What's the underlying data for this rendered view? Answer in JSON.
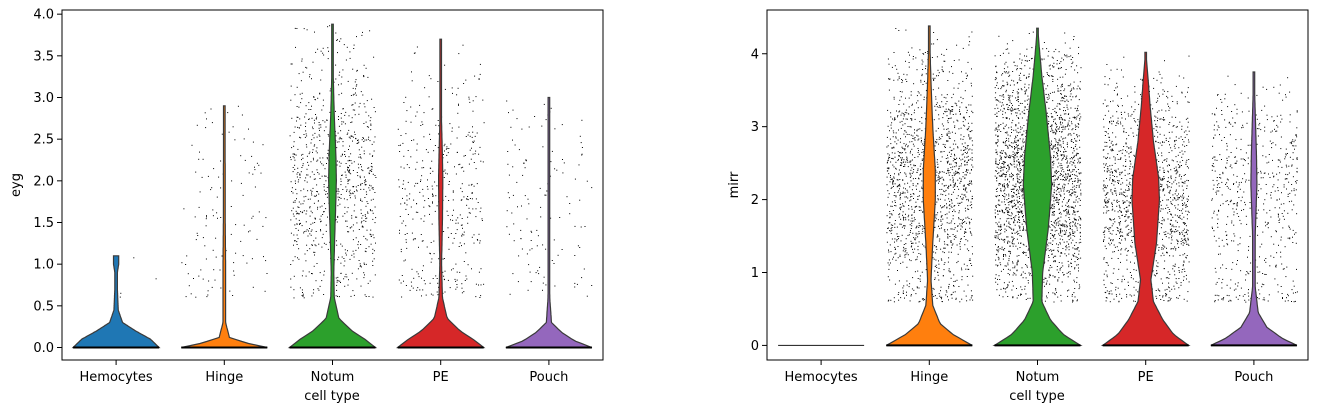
{
  "chart_data": [
    {
      "type": "violin",
      "ylabel": "eyg",
      "xlabel": "cell type",
      "ylim": [
        -0.15,
        4.05
      ],
      "yticks": [
        "0.0",
        "0.5",
        "1.0",
        "1.5",
        "2.0",
        "2.5",
        "3.0",
        "3.5",
        "4.0"
      ],
      "ytick_values": [
        0,
        0.5,
        1.0,
        1.5,
        2.0,
        2.5,
        3.0,
        3.5,
        4.0
      ],
      "grid": false,
      "categories": [
        "Hemocytes",
        "Hinge",
        "Notum",
        "PE",
        "Pouch"
      ],
      "series": [
        {
          "category": "Hemocytes",
          "color": "#1f77b4",
          "max": 1.1,
          "density": [
            [
              0,
              1.0
            ],
            [
              0.1,
              0.8
            ],
            [
              0.2,
              0.45
            ],
            [
              0.3,
              0.15
            ],
            [
              0.45,
              0.05
            ],
            [
              0.7,
              0.03
            ],
            [
              0.9,
              0.03
            ],
            [
              1.0,
              0.06
            ],
            [
              1.1,
              0.06
            ]
          ],
          "points": 4
        },
        {
          "category": "Hinge",
          "color": "#ff7f0e",
          "max": 2.9,
          "density": [
            [
              0,
              1.0
            ],
            [
              0.05,
              0.55
            ],
            [
              0.12,
              0.12
            ],
            [
              0.3,
              0.03
            ],
            [
              1.0,
              0.03
            ],
            [
              1.6,
              0.02
            ],
            [
              2.2,
              0.02
            ],
            [
              2.9,
              0.01
            ]
          ],
          "points": 120
        },
        {
          "category": "Notum",
          "color": "#2ca02c",
          "max": 3.88,
          "density": [
            [
              0,
              1.0
            ],
            [
              0.1,
              0.75
            ],
            [
              0.2,
              0.45
            ],
            [
              0.35,
              0.15
            ],
            [
              0.6,
              0.04
            ],
            [
              0.9,
              0.03
            ],
            [
              1.3,
              0.05
            ],
            [
              1.8,
              0.08
            ],
            [
              2.0,
              0.09
            ],
            [
              2.3,
              0.08
            ],
            [
              2.8,
              0.04
            ],
            [
              3.2,
              0.02
            ],
            [
              3.88,
              0.01
            ]
          ],
          "points": 900
        },
        {
          "category": "PE",
          "color": "#d62728",
          "max": 3.7,
          "density": [
            [
              0,
              1.0
            ],
            [
              0.1,
              0.75
            ],
            [
              0.2,
              0.45
            ],
            [
              0.35,
              0.15
            ],
            [
              0.6,
              0.04
            ],
            [
              1.0,
              0.02
            ],
            [
              1.5,
              0.04
            ],
            [
              2.0,
              0.05
            ],
            [
              2.3,
              0.04
            ],
            [
              2.7,
              0.02
            ],
            [
              3.2,
              0.01
            ],
            [
              3.7,
              0.005
            ]
          ],
          "points": 420
        },
        {
          "category": "Pouch",
          "color": "#9467bd",
          "max": 3.0,
          "density": [
            [
              0,
              1.0
            ],
            [
              0.08,
              0.6
            ],
            [
              0.18,
              0.3
            ],
            [
              0.3,
              0.06
            ],
            [
              0.6,
              0.02
            ],
            [
              1.5,
              0.015
            ],
            [
              2.2,
              0.015
            ],
            [
              3.0,
              0.005
            ]
          ],
          "points": 130
        }
      ]
    },
    {
      "type": "violin",
      "ylabel": "mirr",
      "xlabel": "cell type",
      "ylim": [
        -0.2,
        4.6
      ],
      "yticks": [
        "0",
        "1",
        "2",
        "3",
        "4"
      ],
      "ytick_values": [
        0,
        1,
        2,
        3,
        4
      ],
      "grid": false,
      "categories": [
        "Hemocytes",
        "Hinge",
        "Notum",
        "PE",
        "Pouch"
      ],
      "series": [
        {
          "category": "Hemocytes",
          "color": "#1f77b4",
          "max": 0.0,
          "density": [
            [
              0,
              1.0
            ]
          ],
          "points": 0
        },
        {
          "category": "Hinge",
          "color": "#ff7f0e",
          "max": 4.38,
          "density": [
            [
              0,
              1.0
            ],
            [
              0.15,
              0.55
            ],
            [
              0.3,
              0.25
            ],
            [
              0.55,
              0.08
            ],
            [
              0.9,
              0.04
            ],
            [
              1.4,
              0.08
            ],
            [
              2.0,
              0.14
            ],
            [
              2.4,
              0.14
            ],
            [
              3.0,
              0.08
            ],
            [
              3.6,
              0.04
            ],
            [
              4.0,
              0.02
            ],
            [
              4.38,
              0.005
            ]
          ],
          "points": 1500
        },
        {
          "category": "Notum",
          "color": "#2ca02c",
          "max": 4.35,
          "density": [
            [
              0,
              1.0
            ],
            [
              0.15,
              0.6
            ],
            [
              0.35,
              0.3
            ],
            [
              0.6,
              0.1
            ],
            [
              1.0,
              0.12
            ],
            [
              1.6,
              0.25
            ],
            [
              2.2,
              0.33
            ],
            [
              2.6,
              0.3
            ],
            [
              3.2,
              0.2
            ],
            [
              3.7,
              0.1
            ],
            [
              4.1,
              0.04
            ],
            [
              4.35,
              0.005
            ]
          ],
          "points": 2500
        },
        {
          "category": "PE",
          "color": "#d62728",
          "max": 4.02,
          "density": [
            [
              0,
              1.0
            ],
            [
              0.15,
              0.65
            ],
            [
              0.35,
              0.4
            ],
            [
              0.6,
              0.18
            ],
            [
              0.9,
              0.12
            ],
            [
              1.4,
              0.25
            ],
            [
              2.0,
              0.32
            ],
            [
              2.3,
              0.3
            ],
            [
              2.8,
              0.18
            ],
            [
              3.3,
              0.1
            ],
            [
              3.7,
              0.05
            ],
            [
              4.02,
              0.005
            ]
          ],
          "points": 1400
        },
        {
          "category": "Pouch",
          "color": "#9467bd",
          "max": 3.75,
          "density": [
            [
              0,
              1.0
            ],
            [
              0.1,
              0.65
            ],
            [
              0.25,
              0.3
            ],
            [
              0.45,
              0.1
            ],
            [
              0.8,
              0.03
            ],
            [
              1.5,
              0.03
            ],
            [
              2.2,
              0.07
            ],
            [
              2.6,
              0.06
            ],
            [
              3.2,
              0.03
            ],
            [
              3.75,
              0.005
            ]
          ],
          "points": 600
        }
      ]
    }
  ]
}
